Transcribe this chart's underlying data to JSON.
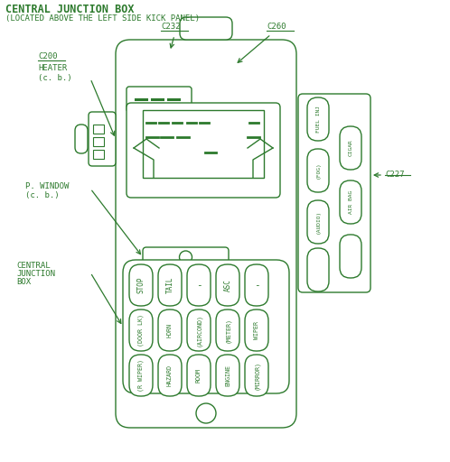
{
  "title": "CENTRAL JUNCTION BOX",
  "subtitle": "(LOCATED ABOVE THE LEFT SIDE KICK PANEL)",
  "green": "#2d7a2d",
  "bg_color": "#ffffff",
  "fuse_labels_row1": [
    "STOP",
    "TAIL",
    "-",
    "ASC",
    "-"
  ],
  "fuse_labels_row2": [
    "(DOOR LK)",
    "HORN",
    "(AIRCOND)",
    "(METER)",
    "WIPER"
  ],
  "fuse_labels_row3": [
    "(R WIPER)",
    "HAZARD",
    "ROOM",
    "ENGINE",
    "(MIRROR)"
  ],
  "right_fuses_col1": [
    "FUEL INJ",
    "(FOG)",
    "(AUDIO)"
  ],
  "right_fuses_col2": [
    "CIGAR",
    "AIR BAG"
  ],
  "connectors": [
    "C232",
    "C260",
    "C227"
  ]
}
